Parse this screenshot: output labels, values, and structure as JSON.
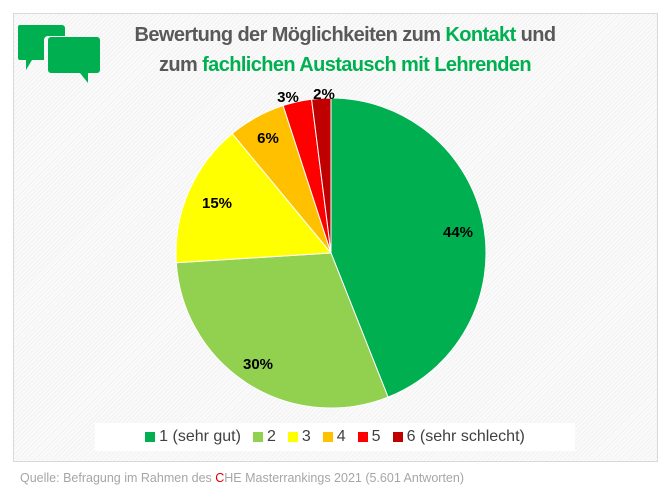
{
  "title": {
    "line1_pre": "Bewertung der Möglichkeiten zum ",
    "line1_hl": "Kontakt",
    "line1_post": " und",
    "line2_pre": "zum ",
    "line2_hl": "fachlichen Austausch mit Lehrenden"
  },
  "chart_data": {
    "type": "pie",
    "categories": [
      "1 (sehr gut)",
      "2",
      "3",
      "4",
      "5",
      "6 (sehr schlecht)"
    ],
    "values": [
      44,
      30,
      15,
      6,
      3,
      2
    ],
    "labels": [
      "44%",
      "30%",
      "15%",
      "6%",
      "3%",
      "2%"
    ],
    "colors": [
      "#00b050",
      "#92d050",
      "#ffff00",
      "#ffc000",
      "#ff0000",
      "#c00000"
    ],
    "start": "top",
    "direction": "clockwise",
    "legend": "bottom"
  },
  "source": {
    "pre": "Quelle: Befragung im Rahmen des ",
    "c": "C",
    "post": "HE Masterrankings 2021 (5.601 Antworten)"
  },
  "icon": "speech-bubbles-icon",
  "accent": "#00b050"
}
